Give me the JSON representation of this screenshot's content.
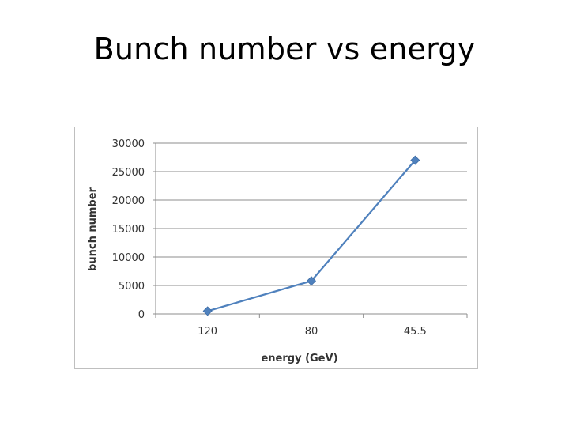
{
  "slide": {
    "title": "Bunch number vs energy"
  },
  "chart_data": {
    "type": "line",
    "title": "",
    "xlabel": "energy (GeV)",
    "ylabel": "bunch number",
    "categories": [
      "120",
      "80",
      "45.5"
    ],
    "series": [
      {
        "values": [
          500,
          5800,
          27000
        ]
      }
    ],
    "ylim": [
      0,
      30000
    ],
    "yticks": [
      0,
      5000,
      10000,
      15000,
      20000,
      25000,
      30000
    ],
    "grid": "horizontal",
    "legend": "none",
    "marker": "diamond",
    "line_color": "#4f81bd"
  }
}
